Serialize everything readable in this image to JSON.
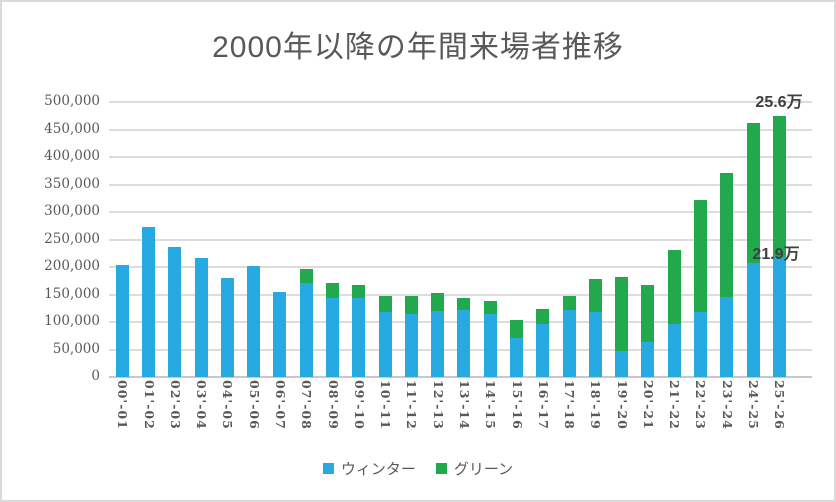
{
  "title": "2000年以降の年間来場者推移",
  "colors": {
    "winter": "#27AAE1",
    "green": "#22A94E",
    "gridline": "#DCDCDC",
    "axis_line": "#C8C8C8",
    "axis_text": "#595959",
    "title_text": "#595959",
    "annotation_text": "#3F3F3F"
  },
  "legend": [
    {
      "label": "ウィンター",
      "color": "#27AAE1"
    },
    {
      "label": "グリーン",
      "color": "#22A94E"
    }
  ],
  "annotations": [
    {
      "text": "25.6万",
      "series": "グリーン",
      "category": "25'-26"
    },
    {
      "text": "21.9万",
      "series": "ウィンター",
      "category": "25'-26"
    }
  ],
  "y_axis": {
    "tick_labels_bottom_to_top": [
      "0",
      "50,000",
      "100,000",
      "150,000",
      "200,000",
      "250,000",
      "300,000",
      "350,000",
      "400,000",
      "450,000",
      "500,000"
    ]
  },
  "chart_data": {
    "type": "bar",
    "stacked": true,
    "title": "2000年以降の年間来場者推移",
    "categories": [
      "00'-01",
      "01'-02",
      "02'-03",
      "03'-04",
      "04'-05",
      "05'-06",
      "06'-07",
      "07'-08",
      "08'-09",
      "09'-10",
      "10'-11",
      "11'-12",
      "12'-13",
      "13'-14",
      "14'-15",
      "15'-16",
      "16'-17",
      "17'-18",
      "18'-19",
      "19'-20",
      "20'-21",
      "21'-22",
      "22'-23",
      "23'-24",
      "24'-25",
      "25'-26"
    ],
    "series": [
      {
        "name": "ウィンター",
        "color": "#27AAE1",
        "values": [
          204000,
          273000,
          237000,
          216000,
          180000,
          202000,
          155000,
          171000,
          144000,
          144000,
          119000,
          115000,
          120000,
          121000,
          115000,
          71000,
          96000,
          121000,
          118000,
          48000,
          64000,
          97000,
          119000,
          145000,
          207000,
          219000
        ]
      },
      {
        "name": "グリーン",
        "color": "#22A94E",
        "values": [
          0,
          0,
          0,
          0,
          0,
          0,
          0,
          26000,
          27000,
          23000,
          28000,
          33000,
          32000,
          23000,
          24000,
          33000,
          27000,
          27000,
          60000,
          134000,
          103000,
          134000,
          202000,
          226000,
          255000,
          256000
        ]
      }
    ],
    "xlabel": "",
    "ylabel": "",
    "ylim": [
      0,
      500000
    ],
    "ytick_step": 50000,
    "grid": "horizontal",
    "legend_position": "bottom",
    "annotations": [
      {
        "text": "25.6万",
        "category": "25'-26",
        "series": "グリーン"
      },
      {
        "text": "21.9万",
        "category": "25'-26",
        "series": "ウィンター"
      }
    ]
  }
}
